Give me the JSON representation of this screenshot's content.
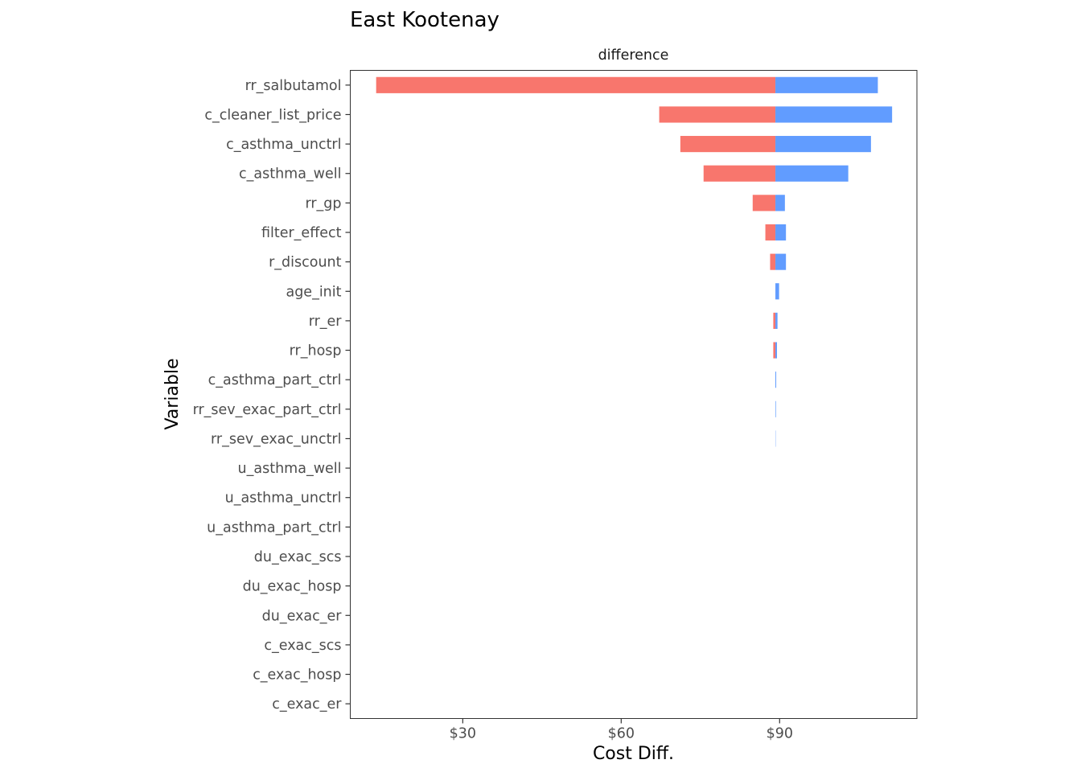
{
  "chart_data": {
    "type": "bar",
    "orientation": "horizontal",
    "title": "East Kootenay",
    "facet_label": "difference",
    "xlabel": "Cost Diff.",
    "ylabel": "Variable",
    "baseline": 89.2,
    "xlim": [
      8.7,
      116
    ],
    "x_ticks": [
      30,
      60,
      90
    ],
    "x_tick_labels": [
      "$30",
      "$60",
      "$90"
    ],
    "grid": false,
    "legend": "none",
    "colors": {
      "low": "#F8766D",
      "high": "#619CFF",
      "axis": "#333333",
      "tick_text": "#4D4D4D",
      "background": "#FFFFFF"
    },
    "categories": [
      "rr_salbutamol",
      "c_cleaner_list_price",
      "c_asthma_unctrl",
      "c_asthma_well",
      "rr_gp",
      "filter_effect",
      "r_discount",
      "age_init",
      "rr_er",
      "rr_hosp",
      "c_asthma_part_ctrl",
      "rr_sev_exac_part_ctrl",
      "rr_sev_exac_unctrl",
      "u_asthma_well",
      "u_asthma_unctrl",
      "u_asthma_part_ctrl",
      "du_exac_scs",
      "du_exac_hosp",
      "du_exac_er",
      "c_exac_scs",
      "c_exac_hosp",
      "c_exac_er"
    ],
    "series": [
      {
        "name": "low",
        "values": [
          13.6,
          67.2,
          71.2,
          75.6,
          84.9,
          87.3,
          88.2,
          89.2,
          88.8,
          88.8,
          89.2,
          89.2,
          89.2,
          89.2,
          89.2,
          89.2,
          89.2,
          89.2,
          89.2,
          89.2,
          89.2,
          89.2
        ]
      },
      {
        "name": "high",
        "values": [
          108.6,
          111.3,
          107.3,
          103.0,
          91.0,
          91.2,
          91.2,
          89.9,
          89.6,
          89.5,
          89.35,
          89.3,
          89.25,
          89.2,
          89.2,
          89.2,
          89.2,
          89.2,
          89.2,
          89.2,
          89.2,
          89.2
        ]
      }
    ]
  }
}
